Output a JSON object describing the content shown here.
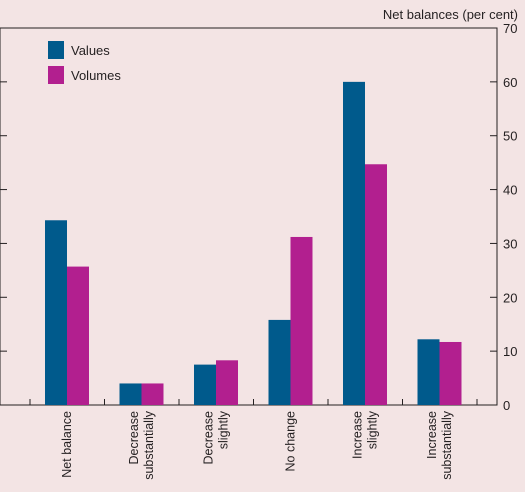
{
  "chart_data": {
    "type": "bar",
    "title": "",
    "ylabel": "Net balances (per cent)",
    "xlabel": "",
    "ylim": [
      0,
      70
    ],
    "yticks": [
      0,
      10,
      20,
      30,
      40,
      50,
      60,
      70
    ],
    "y_axis_position": "right",
    "grid": false,
    "legend_position": "top-left",
    "categories": [
      [
        "Net balance"
      ],
      [
        "Decrease",
        "substantially"
      ],
      [
        "Decrease",
        "slightly"
      ],
      [
        "No change"
      ],
      [
        "Increase",
        "slightly"
      ],
      [
        "Increase",
        "substantially"
      ]
    ],
    "series": [
      {
        "name": "Values",
        "color": "#005a8c",
        "values": [
          34.3,
          4.0,
          7.5,
          15.8,
          60.0,
          12.2
        ]
      },
      {
        "name": "Volumes",
        "color": "#b21f8f",
        "values": [
          25.7,
          4.0,
          8.3,
          31.2,
          44.7,
          11.7
        ]
      }
    ]
  }
}
